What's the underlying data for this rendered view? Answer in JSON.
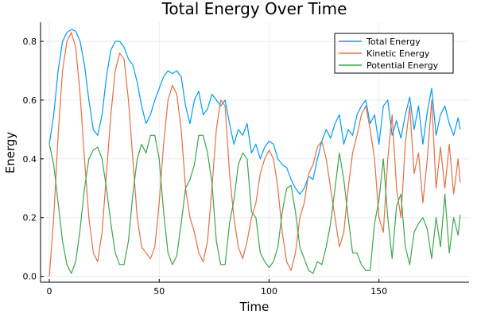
{
  "chart_data": {
    "type": "line",
    "title": "Total Energy Over Time",
    "xlabel": "Time",
    "ylabel": "Energy",
    "xlim": [
      -4,
      191
    ],
    "ylim": [
      -0.02,
      0.865
    ],
    "xticks": [
      0,
      50,
      100,
      150
    ],
    "xtick_labels": [
      "0",
      "50",
      "100",
      "150"
    ],
    "yticks": [
      0,
      0.2,
      0.4,
      0.6,
      0.8
    ],
    "ytick_labels": [
      "0.0",
      "0.2",
      "0.4",
      "0.6",
      "0.8"
    ],
    "grid": true,
    "legend_position": "top-right",
    "series": [
      {
        "name": "Total Energy",
        "color": "#009AFA",
        "x": [
          0,
          2,
          4,
          6,
          8,
          10,
          12,
          14,
          16,
          18,
          20,
          22,
          24,
          26,
          28,
          30,
          32,
          34,
          36,
          38,
          40,
          42,
          44,
          46,
          48,
          50,
          52,
          54,
          56,
          58,
          60,
          62,
          64,
          66,
          68,
          70,
          72,
          74,
          76,
          78,
          80,
          82,
          84,
          86,
          88,
          90,
          92,
          94,
          96,
          98,
          100,
          102,
          104,
          106,
          108,
          110,
          112,
          114,
          116,
          118,
          120,
          122,
          124,
          126,
          128,
          130,
          132,
          134,
          136,
          138,
          140,
          142,
          144,
          146,
          148,
          150,
          152,
          154,
          156,
          158,
          160,
          162,
          164,
          166,
          168,
          170,
          172,
          174,
          176,
          178,
          180,
          182,
          184,
          186,
          187
        ],
        "y": [
          0.45,
          0.55,
          0.7,
          0.8,
          0.83,
          0.84,
          0.835,
          0.8,
          0.72,
          0.6,
          0.5,
          0.48,
          0.55,
          0.68,
          0.77,
          0.8,
          0.8,
          0.78,
          0.74,
          0.72,
          0.66,
          0.58,
          0.52,
          0.55,
          0.6,
          0.64,
          0.68,
          0.7,
          0.69,
          0.7,
          0.68,
          0.58,
          0.52,
          0.6,
          0.63,
          0.55,
          0.57,
          0.62,
          0.6,
          0.58,
          0.6,
          0.52,
          0.45,
          0.5,
          0.48,
          0.52,
          0.42,
          0.45,
          0.4,
          0.44,
          0.46,
          0.45,
          0.4,
          0.38,
          0.37,
          0.33,
          0.3,
          0.28,
          0.3,
          0.34,
          0.33,
          0.4,
          0.46,
          0.5,
          0.47,
          0.52,
          0.55,
          0.45,
          0.5,
          0.48,
          0.55,
          0.58,
          0.6,
          0.52,
          0.55,
          0.45,
          0.58,
          0.6,
          0.48,
          0.53,
          0.47,
          0.55,
          0.61,
          0.5,
          0.58,
          0.45,
          0.56,
          0.64,
          0.48,
          0.55,
          0.58,
          0.52,
          0.48,
          0.54,
          0.5
        ]
      },
      {
        "name": "Kinetic Energy",
        "color": "#E26F46",
        "x": [
          0,
          2,
          4,
          6,
          8,
          10,
          12,
          14,
          16,
          18,
          20,
          22,
          24,
          26,
          28,
          30,
          32,
          34,
          36,
          38,
          40,
          42,
          44,
          46,
          48,
          50,
          52,
          54,
          56,
          58,
          60,
          62,
          64,
          66,
          68,
          70,
          72,
          74,
          76,
          78,
          80,
          82,
          84,
          86,
          88,
          90,
          92,
          94,
          96,
          98,
          100,
          102,
          104,
          106,
          108,
          110,
          112,
          114,
          116,
          118,
          120,
          122,
          124,
          126,
          128,
          130,
          132,
          134,
          136,
          138,
          140,
          142,
          144,
          146,
          148,
          150,
          152,
          154,
          156,
          158,
          160,
          162,
          164,
          166,
          168,
          170,
          172,
          174,
          176,
          178,
          180,
          182,
          184,
          186,
          187
        ],
        "y": [
          0.0,
          0.2,
          0.48,
          0.7,
          0.8,
          0.83,
          0.78,
          0.62,
          0.4,
          0.2,
          0.08,
          0.05,
          0.15,
          0.35,
          0.55,
          0.7,
          0.76,
          0.74,
          0.6,
          0.4,
          0.2,
          0.1,
          0.08,
          0.06,
          0.1,
          0.25,
          0.45,
          0.6,
          0.65,
          0.62,
          0.5,
          0.3,
          0.2,
          0.15,
          0.08,
          0.05,
          0.12,
          0.3,
          0.5,
          0.6,
          0.58,
          0.35,
          0.2,
          0.1,
          0.06,
          0.12,
          0.2,
          0.25,
          0.35,
          0.4,
          0.43,
          0.4,
          0.3,
          0.15,
          0.05,
          0.02,
          0.08,
          0.2,
          0.25,
          0.35,
          0.38,
          0.44,
          0.46,
          0.4,
          0.3,
          0.2,
          0.1,
          0.15,
          0.3,
          0.42,
          0.48,
          0.55,
          0.58,
          0.5,
          0.4,
          0.2,
          0.15,
          0.4,
          0.55,
          0.3,
          0.2,
          0.45,
          0.58,
          0.35,
          0.42,
          0.25,
          0.4,
          0.6,
          0.3,
          0.44,
          0.3,
          0.45,
          0.28,
          0.4,
          0.32
        ]
      },
      {
        "name": "Potential Energy",
        "color": "#3EA44E",
        "x": [
          0,
          2,
          4,
          6,
          8,
          10,
          12,
          14,
          16,
          18,
          20,
          22,
          24,
          26,
          28,
          30,
          32,
          34,
          36,
          38,
          40,
          42,
          44,
          46,
          48,
          50,
          52,
          54,
          56,
          58,
          60,
          62,
          64,
          66,
          68,
          70,
          72,
          74,
          76,
          78,
          80,
          82,
          84,
          86,
          88,
          90,
          92,
          94,
          96,
          98,
          100,
          102,
          104,
          106,
          108,
          110,
          112,
          114,
          116,
          118,
          120,
          122,
          124,
          126,
          128,
          130,
          132,
          134,
          136,
          138,
          140,
          142,
          144,
          146,
          148,
          150,
          152,
          154,
          156,
          158,
          160,
          162,
          164,
          166,
          168,
          170,
          172,
          174,
          176,
          178,
          180,
          182,
          184,
          186,
          187
        ],
        "y": [
          0.45,
          0.38,
          0.25,
          0.12,
          0.04,
          0.01,
          0.05,
          0.16,
          0.3,
          0.4,
          0.43,
          0.44,
          0.4,
          0.3,
          0.18,
          0.08,
          0.04,
          0.04,
          0.12,
          0.28,
          0.4,
          0.45,
          0.42,
          0.48,
          0.48,
          0.4,
          0.22,
          0.08,
          0.04,
          0.07,
          0.18,
          0.3,
          0.33,
          0.38,
          0.48,
          0.48,
          0.42,
          0.32,
          0.12,
          0.04,
          0.04,
          0.18,
          0.26,
          0.38,
          0.42,
          0.4,
          0.22,
          0.2,
          0.08,
          0.05,
          0.03,
          0.05,
          0.1,
          0.22,
          0.3,
          0.31,
          0.22,
          0.1,
          0.06,
          0.02,
          0.01,
          0.05,
          0.04,
          0.1,
          0.18,
          0.3,
          0.42,
          0.33,
          0.2,
          0.08,
          0.08,
          0.04,
          0.02,
          0.02,
          0.18,
          0.26,
          0.4,
          0.2,
          0.06,
          0.24,
          0.28,
          0.1,
          0.04,
          0.15,
          0.18,
          0.2,
          0.16,
          0.06,
          0.2,
          0.1,
          0.28,
          0.08,
          0.2,
          0.14,
          0.21
        ]
      }
    ]
  }
}
